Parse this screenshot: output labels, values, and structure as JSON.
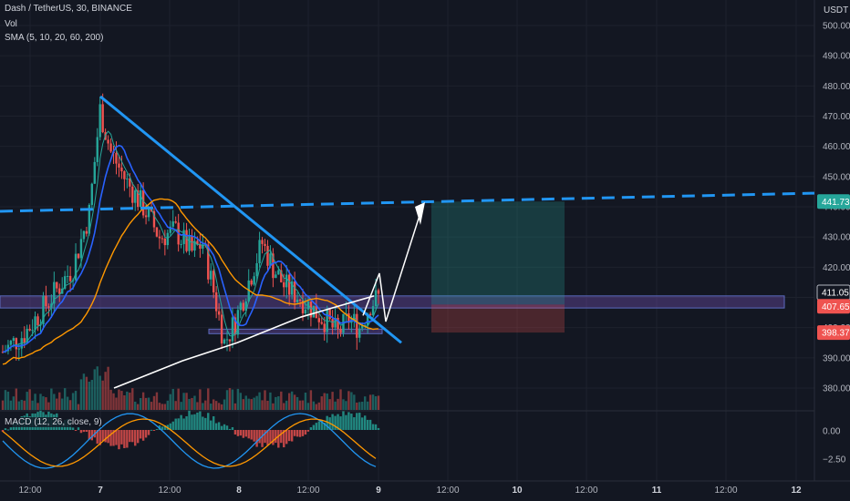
{
  "header": {
    "symbol": "Dash / TetherUS, 30, BINANCE",
    "vol_label": "Vol",
    "sma_label": "SMA (5, 10, 20, 60, 200)",
    "macd_label": "MACD (12, 26, close, 9)",
    "currency": "USDT"
  },
  "colors": {
    "background": "#131722",
    "up": "#26a69a",
    "down": "#ef5350",
    "trendline": "#2196f3",
    "zone": "#7e57c2",
    "sma_green": "#26a69a",
    "sma_blue": "#2962ff",
    "sma_orange": "#ff9800",
    "sma_white": "#ffffff"
  },
  "chart_data": {
    "type": "candlestick",
    "y_ticks": [
      500,
      490,
      480,
      470,
      460,
      450,
      440,
      430,
      420,
      410,
      400,
      390,
      380
    ],
    "ylim": [
      376,
      503
    ],
    "x_labels": [
      {
        "label": "12:00",
        "bold": false
      },
      {
        "label": "7",
        "bold": true
      },
      {
        "label": "12:00",
        "bold": false
      },
      {
        "label": "8",
        "bold": true
      },
      {
        "label": "12:00",
        "bold": false
      },
      {
        "label": "9",
        "bold": true
      },
      {
        "label": "12:00",
        "bold": false
      },
      {
        "label": "10",
        "bold": true
      },
      {
        "label": "12:00",
        "bold": false
      },
      {
        "label": "11",
        "bold": true
      },
      {
        "label": "12:00",
        "bold": false
      },
      {
        "label": "12",
        "bold": true
      }
    ],
    "price_badges": [
      {
        "value": "441.73",
        "color": "#26a69a"
      },
      {
        "value": "411.05",
        "color": "#131722"
      },
      {
        "value": "407.65",
        "color": "#ef5350"
      },
      {
        "value": "398.37",
        "color": "#ef5350"
      }
    ],
    "macd_ticks": [
      "0.00",
      "−2.50"
    ],
    "annotations": {
      "resistance_level": 441.73,
      "support_zone": [
        406.5,
        410.5
      ],
      "lower_zone": [
        398,
        399.5
      ],
      "target_box": [
        407.65,
        441.73
      ],
      "stop_box": [
        398.37,
        407.65
      ]
    },
    "series_overview": {
      "start_price": 392,
      "high": 476,
      "current": 410
    }
  }
}
